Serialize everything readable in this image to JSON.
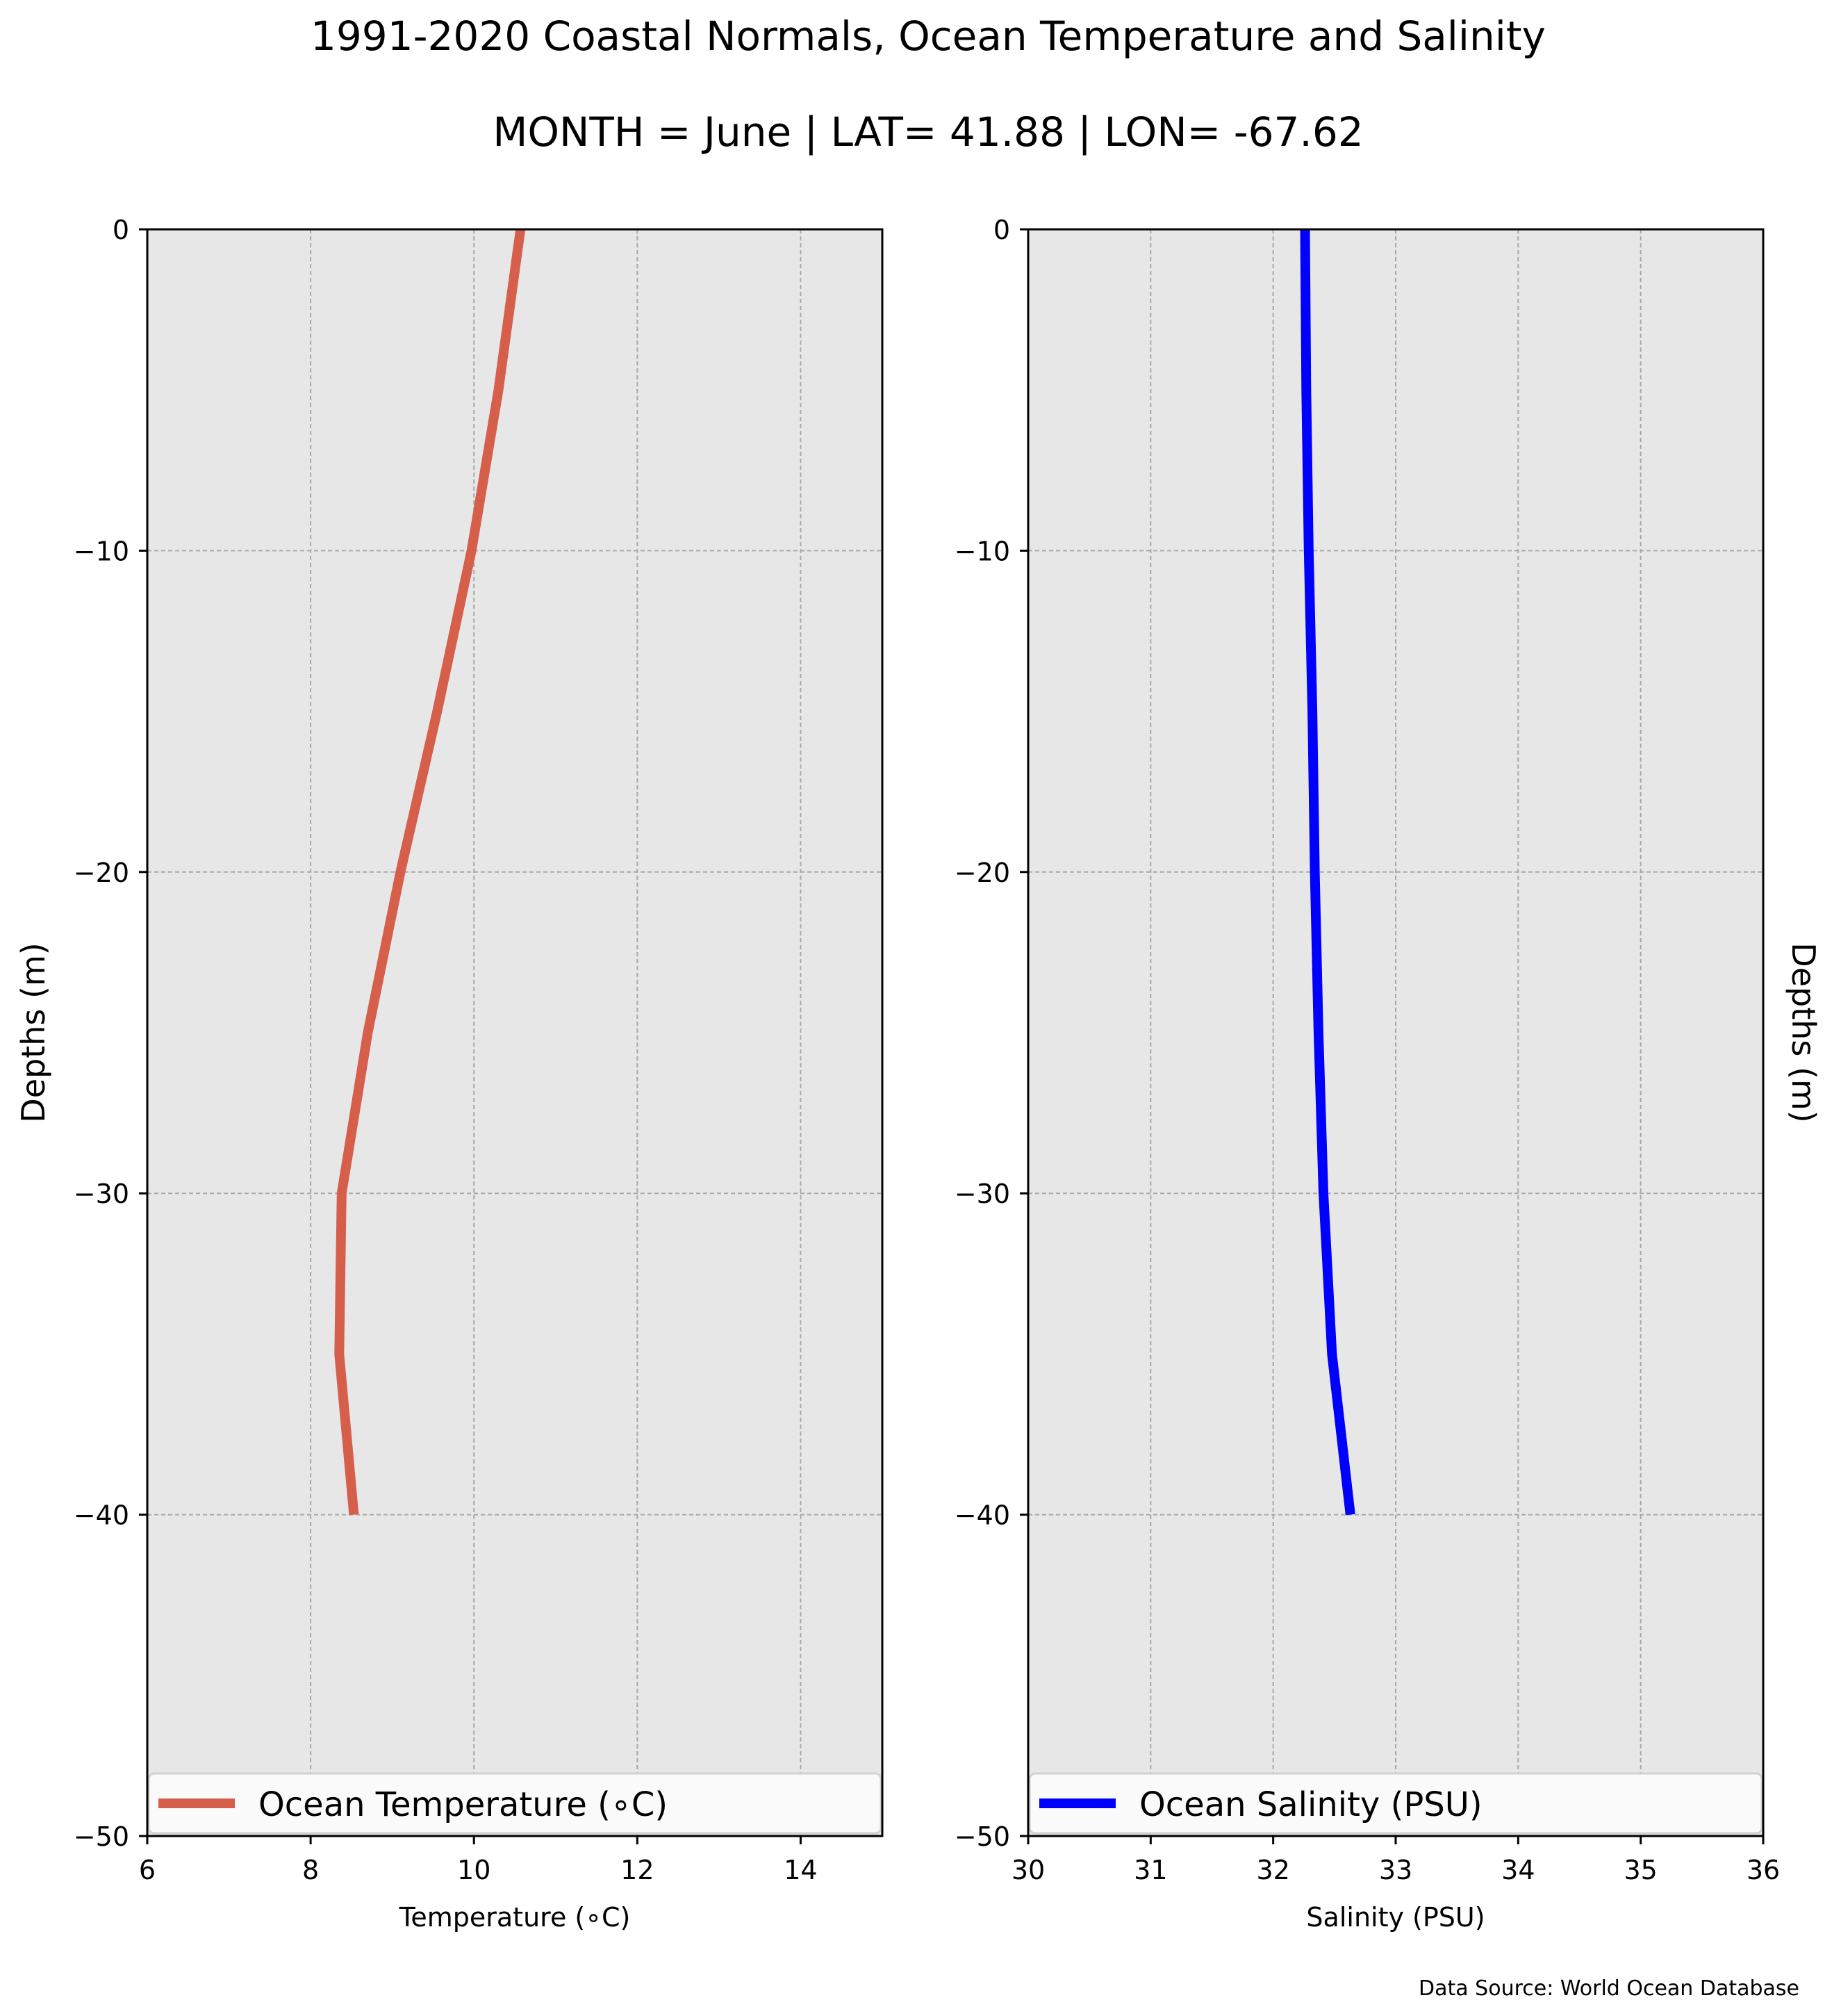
{
  "title": "1991-2020 Coastal Normals, Ocean Temperature and Salinity",
  "subtitle": "MONTH = June | LAT= 41.88 | LON= -67.62",
  "source": "Data Source: World Ocean Database",
  "chart_data": [
    {
      "type": "line",
      "xlabel": "Temperature (∘C)",
      "ylabel": "Depths (m)",
      "xlim": [
        6,
        15
      ],
      "ylim": [
        -50,
        0
      ],
      "xticks": [
        6,
        8,
        10,
        12,
        14
      ],
      "yticks": [
        0,
        -10,
        -20,
        -30,
        -40,
        -50
      ],
      "grid": true,
      "background": "#e7e7e7",
      "legend_location": "lower center",
      "series": [
        {
          "name": "Ocean Temperature (∘C)",
          "color": "#d65f4c",
          "x": [
            10.57,
            10.3,
            9.97,
            9.55,
            9.1,
            8.7,
            8.38,
            8.35,
            8.53
          ],
          "y": [
            0,
            -5,
            -10,
            -15,
            -20,
            -25,
            -30,
            -35,
            -40
          ]
        }
      ]
    },
    {
      "type": "line",
      "xlabel": "Salinity (PSU)",
      "ylabel": "Depths (m)",
      "xlim": [
        30,
        36
      ],
      "ylim": [
        -50,
        0
      ],
      "xticks": [
        30,
        31,
        32,
        33,
        34,
        35,
        36
      ],
      "yticks": [
        0,
        -10,
        -20,
        -30,
        -40,
        -50
      ],
      "grid": true,
      "background": "#e7e7e7",
      "legend_location": "lower center",
      "series": [
        {
          "name": "Ocean Salinity (PSU)",
          "color": "#0000ff",
          "x": [
            32.26,
            32.27,
            32.29,
            32.32,
            32.34,
            32.37,
            32.41,
            32.48,
            32.63
          ],
          "y": [
            0,
            -5,
            -10,
            -15,
            -20,
            -25,
            -30,
            -35,
            -40
          ]
        }
      ]
    }
  ]
}
